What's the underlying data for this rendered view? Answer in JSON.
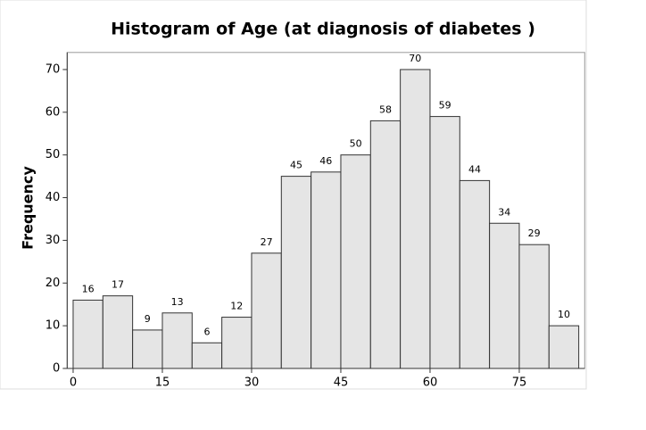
{
  "chart_data": {
    "type": "histogram",
    "title": "Histogram of Age (at diagnosis of diabetes )",
    "y_label": "Frequency",
    "bins": [
      0,
      5,
      10,
      15,
      20,
      25,
      30,
      35,
      40,
      45,
      50,
      55,
      60,
      65,
      70,
      75,
      80,
      85
    ],
    "values": [
      16,
      17,
      9,
      13,
      6,
      12,
      27,
      45,
      46,
      50,
      58,
      70,
      59,
      44,
      34,
      29,
      10
    ],
    "color": "#e5e5e5",
    "xlim": [
      -1,
      86
    ],
    "xticks": [
      0,
      15,
      30,
      45,
      60,
      75
    ],
    "ylim": [
      0,
      74
    ],
    "yticks": [
      0,
      10,
      20,
      30,
      40,
      50,
      60,
      70
    ]
  }
}
